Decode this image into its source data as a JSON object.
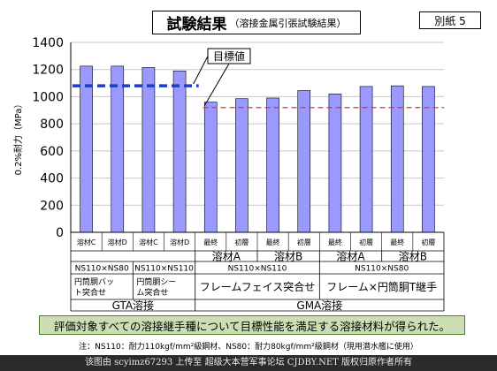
{
  "page": {
    "title_main": "試験結果",
    "title_sub": "（溶接金属引張試験結果）",
    "appendix_label": "別紙 5",
    "conclusion": "評価対象すべての溶接継手種について目標性能を満足する溶接材料が得られた。",
    "footnote": "注：NS110：耐力110kgf/mm²級鋼材、NS80：耐力80kgf/mm²級鋼材（現用潜水艦に使用）",
    "watermark": "该图由 scyimz67293 上传至 超级大本营军事论坛 CJDBY.NET 版权归原作者所有"
  },
  "chart_data": {
    "type": "bar",
    "ylabel": "0.2%耐力（MPa）",
    "ylim": [
      0,
      1400
    ],
    "yticks": [
      0,
      200,
      400,
      600,
      800,
      1000,
      1200,
      1400
    ],
    "values": [
      1225,
      1225,
      1215,
      1190,
      960,
      985,
      990,
      1045,
      1020,
      1075,
      1080,
      1075
    ],
    "bar_color": "#9999ff",
    "target_label": "目標値",
    "targets": [
      {
        "value": 1080,
        "from": 0,
        "to": 4,
        "color": "#1f3fbf",
        "style": "dashed-thick"
      },
      {
        "value": 920,
        "from": 4,
        "to": 12,
        "color": "#e03030",
        "style": "dashed-thin"
      }
    ],
    "table": {
      "row1": [
        "溶材C",
        "溶材D",
        "溶材C",
        "溶材D",
        "最終",
        "初層",
        "最終",
        "初層",
        "最終",
        "初層",
        "最終",
        "初層"
      ],
      "row2": [
        {
          "text": "",
          "span": 4
        },
        {
          "text": "溶材A",
          "span": 2
        },
        {
          "text": "溶材B",
          "span": 2
        },
        {
          "text": "溶材A",
          "span": 2
        },
        {
          "text": "溶材B",
          "span": 2
        }
      ],
      "row3": [
        {
          "text": "NS110×NS80",
          "span": 2
        },
        {
          "text": "NS110×NS110",
          "span": 2
        },
        {
          "text": "NS110×NS110",
          "span": 4
        },
        {
          "text": "NS110×NS80",
          "span": 4
        }
      ],
      "row4": [
        {
          "text": "円筒胴バット突合せ",
          "span": 2
        },
        {
          "text": "円筒胴シーム突合せ",
          "span": 2
        },
        {
          "text": "フレームフェイス突合せ",
          "span": 4
        },
        {
          "text": "フレーム×円筒胴T継手",
          "span": 4
        }
      ],
      "row5": [
        {
          "text": "GTA溶接",
          "span": 4
        },
        {
          "text": "GMA溶接",
          "span": 8
        }
      ]
    }
  }
}
